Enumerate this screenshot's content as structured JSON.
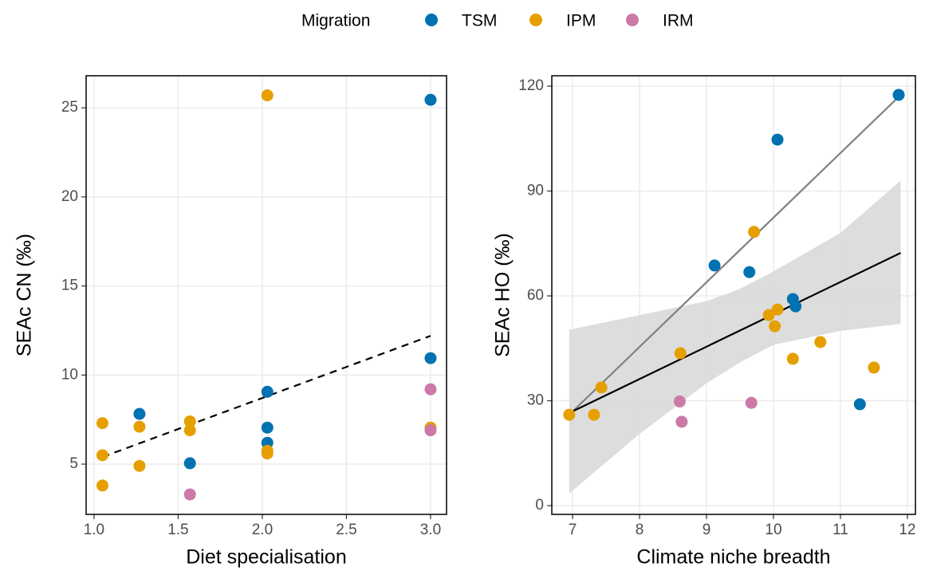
{
  "legend": {
    "title": "Migration"
  },
  "chart_data": [
    {
      "type": "scatter",
      "xlabel": "Diet specialisation",
      "ylabel": "SEAc CN (‰)",
      "xlim": [
        0.953,
        3.095
      ],
      "ylim": [
        2.18,
        26.8
      ],
      "xticks": [
        {
          "value": 1,
          "label": "1.0"
        },
        1.5,
        {
          "value": 2,
          "label": "2.0"
        },
        2.5,
        {
          "value": 3,
          "label": "3.0"
        }
      ],
      "yticks": [
        5,
        10,
        15,
        20,
        25
      ],
      "grid": true,
      "series": [
        {
          "name": "TSM",
          "color": "#0072B2",
          "x": [
            1.27,
            3.0,
            3.0,
            2.03,
            2.03,
            2.03,
            1.57
          ],
          "values": [
            7.82,
            25.45,
            10.95,
            9.06,
            7.05,
            6.2,
            5.05
          ]
        },
        {
          "name": "IPM",
          "color": "#E69F00",
          "x": [
            2.03,
            1.05,
            1.05,
            1.05,
            1.27,
            1.27,
            1.57,
            1.57,
            2.03,
            2.03,
            3.0
          ],
          "values": [
            25.7,
            7.3,
            5.5,
            3.8,
            7.1,
            4.9,
            7.4,
            6.9,
            5.75,
            5.6,
            7.05
          ]
        },
        {
          "name": "IRM",
          "color": "#CC79A7",
          "x": [
            1.57,
            3.0,
            3.0
          ],
          "values": [
            3.3,
            9.2,
            6.9
          ]
        }
      ],
      "lines": [
        {
          "x": [
            1.05,
            3.0
          ],
          "values": [
            5.4,
            12.2
          ],
          "color": "#000000",
          "dash": true
        }
      ]
    },
    {
      "type": "scatter",
      "xlabel": "Climate niche breadth",
      "ylabel": "SEAc HO (‰)",
      "xlim": [
        6.69,
        12.12
      ],
      "ylim": [
        -2.5,
        122.97
      ],
      "xticks": [
        7,
        8,
        9,
        10,
        11,
        12
      ],
      "yticks": [
        0,
        30,
        60,
        90,
        120
      ],
      "grid": true,
      "series": [
        {
          "name": "TSM",
          "color": "#0072B2",
          "x": [
            11.87,
            10.06,
            9.12,
            9.64,
            10.29,
            10.33,
            11.29
          ],
          "values": [
            117.5,
            104.7,
            68.7,
            66.8,
            59.1,
            57.0,
            29.0
          ]
        },
        {
          "name": "IPM",
          "color": "#E69F00",
          "x": [
            6.95,
            7.32,
            7.43,
            8.61,
            9.71,
            9.93,
            10.06,
            10.02,
            10.29,
            10.7,
            11.5
          ],
          "values": [
            26.0,
            26.0,
            33.8,
            43.6,
            78.3,
            54.5,
            56.1,
            51.3,
            42.0,
            46.8,
            39.5
          ]
        },
        {
          "name": "IRM",
          "color": "#CC79A7",
          "x": [
            8.6,
            8.63,
            9.67
          ],
          "values": [
            29.8,
            24.0,
            29.4
          ]
        }
      ],
      "band": {
        "x": [
          6.95,
          8,
          9,
          9.5,
          10,
          11,
          11.9
        ],
        "upper": [
          50.3,
          54.5,
          58.5,
          62,
          67,
          78,
          93
        ],
        "lower": [
          3.5,
          20.5,
          35,
          41,
          46,
          50,
          52
        ],
        "color": "#d9d9d9"
      },
      "lines": [
        {
          "x": [
            6.95,
            11.9
          ],
          "values": [
            26.0,
            117.5
          ],
          "color": "#808080",
          "dash": false
        },
        {
          "x": [
            6.95,
            11.9
          ],
          "values": [
            26.5,
            72.3
          ],
          "color": "#000000",
          "dash": false
        }
      ]
    }
  ]
}
